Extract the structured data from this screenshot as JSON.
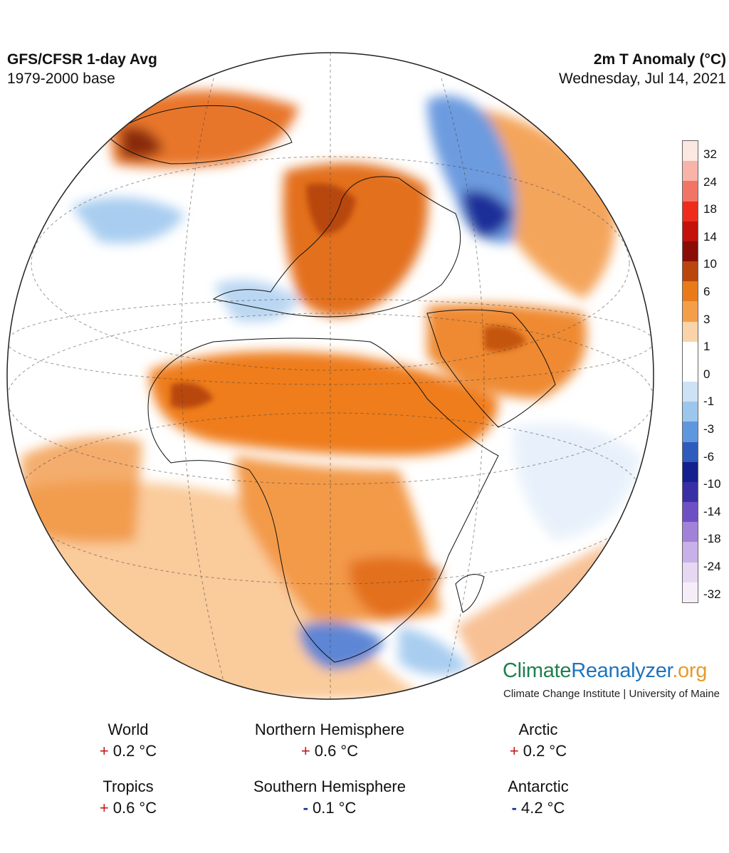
{
  "header": {
    "model": "GFS/CFSR 1-day Avg",
    "base": "1979-2000 base",
    "variable": "2m T Anomaly (°C)",
    "date": "Wednesday, Jul 14, 2021"
  },
  "legend": {
    "labels": [
      "32",
      "24",
      "18",
      "14",
      "10",
      "6",
      "3",
      "1",
      "0",
      "-1",
      "-3",
      "-6",
      "-10",
      "-14",
      "-18",
      "-24",
      "-32"
    ],
    "colors": [
      "#fde7e1",
      "#f8b4a9",
      "#f27466",
      "#ef2b1d",
      "#c4110c",
      "#8a0d08",
      "#b8460d",
      "#e87a1a",
      "#f59e4a",
      "#fad3a8",
      "#ffffff",
      "#ffffff",
      "#cde2f4",
      "#9bc7ec",
      "#5f97df",
      "#2f5bbd",
      "#13208d",
      "#3a2ea6",
      "#6f50c4",
      "#a182d8",
      "#c8b0e8",
      "#e6d8f2",
      "#f5eef8"
    ]
  },
  "brand": {
    "part1": "Climate",
    "part2": "Reanalyzer",
    "part3": ".org",
    "subtitle": "Climate Change Institute | University of Maine"
  },
  "stats": [
    {
      "label": "World",
      "sign": "+",
      "value": "0.2 °C"
    },
    {
      "label": "Northern Hemisphere",
      "sign": "+",
      "value": "0.6 °C"
    },
    {
      "label": "Arctic",
      "sign": "+",
      "value": "0.2 °C"
    },
    {
      "label": "Tropics",
      "sign": "+",
      "value": "0.6 °C"
    },
    {
      "label": "Southern Hemisphere",
      "sign": "-",
      "value": "0.1 °C"
    },
    {
      "label": "Antarctic",
      "sign": "-",
      "value": "4.2 °C"
    }
  ],
  "colors": {
    "warm": "#f08a2c",
    "warm_light": "#f9c48f",
    "warm_dark": "#b8460d",
    "cold": "#9bc7ec",
    "cold_dark": "#2f4fb5",
    "neutral": "#ffffff"
  }
}
